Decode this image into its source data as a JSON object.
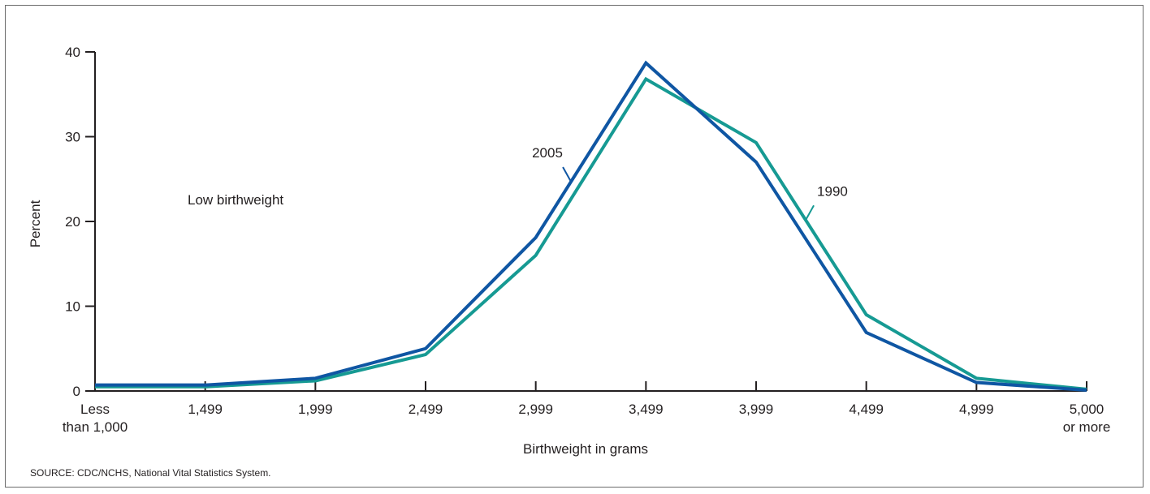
{
  "chart_data": {
    "type": "line",
    "title": "",
    "xlabel": "Birthweight in grams",
    "ylabel": "Percent",
    "ylim": [
      0,
      40
    ],
    "yticks": [
      "0",
      "10",
      "20",
      "30",
      "40"
    ],
    "categories": [
      [
        "Less",
        "than 1,000"
      ],
      [
        "1,499"
      ],
      [
        "1,999"
      ],
      [
        "2,499"
      ],
      [
        "2,999"
      ],
      [
        "3,499"
      ],
      [
        "3,999"
      ],
      [
        "4,499"
      ],
      [
        "4,999"
      ],
      [
        "5,000",
        "or more"
      ]
    ],
    "series": [
      {
        "name": "2005",
        "color": "#0f56a3",
        "values": [
          0.7,
          0.7,
          1.5,
          5.0,
          18.1,
          38.7,
          27.0,
          6.9,
          1.0,
          0.1
        ]
      },
      {
        "name": "1990",
        "color": "#169a93",
        "values": [
          0.5,
          0.5,
          1.2,
          4.3,
          16.0,
          36.8,
          29.3,
          9.0,
          1.5,
          0.2
        ]
      }
    ],
    "annotation": "Low birthweight",
    "grid": false,
    "legend": "inline labels"
  },
  "source": "SOURCE: CDC/NCHS, National Vital Statistics System."
}
